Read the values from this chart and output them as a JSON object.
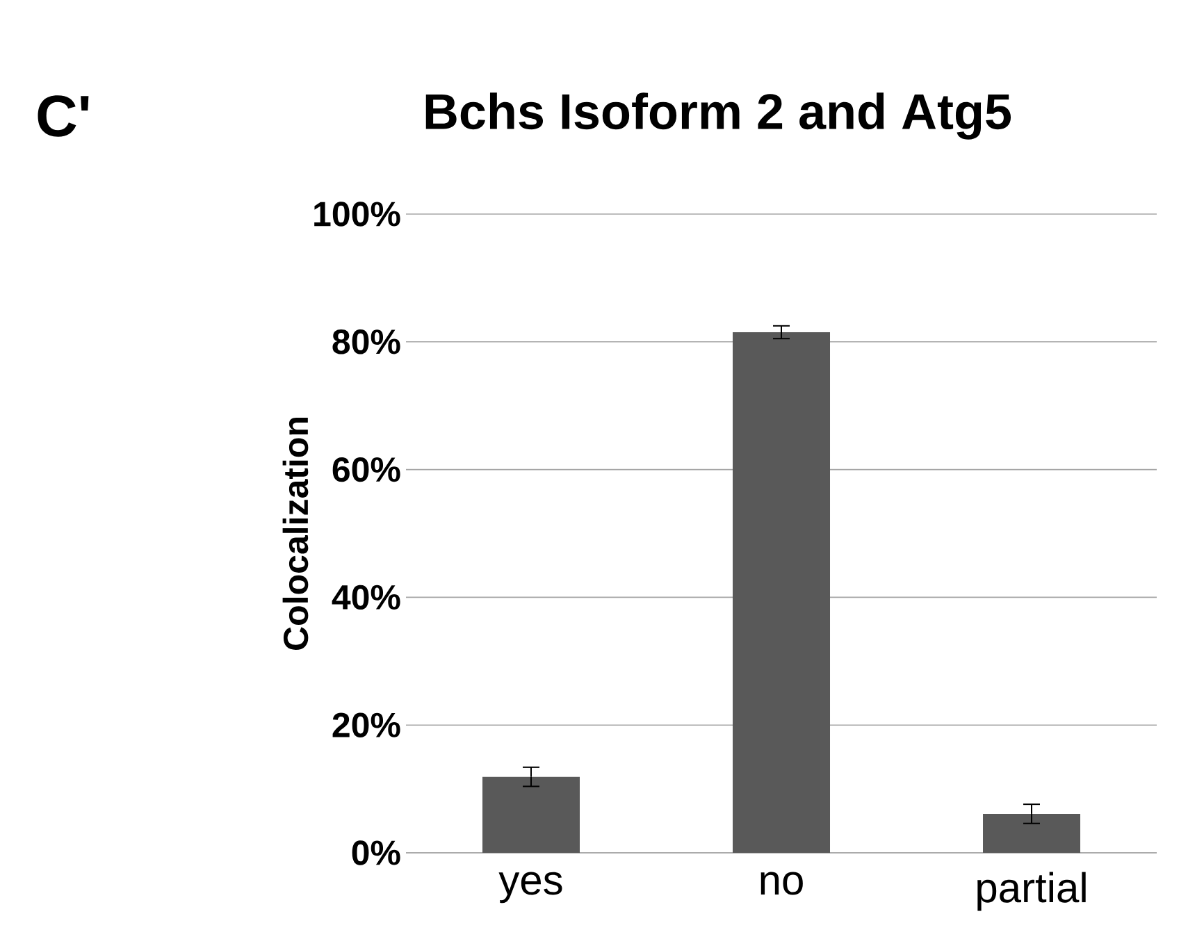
{
  "chart_data": {
    "type": "bar",
    "title": "Bchs Isoform 2 and Atg5",
    "ylabel": "Colocalization",
    "annotations": [
      "C'"
    ],
    "categories": [
      "yes",
      "no",
      "partial"
    ],
    "values": [
      11.9,
      81.5,
      6.1
    ],
    "errors": [
      1.5,
      1.0,
      1.5
    ],
    "color": "#595959",
    "ylim": [
      0,
      100
    ],
    "yticks": [
      {
        "value": 0,
        "label": "0%"
      },
      {
        "value": 20,
        "label": "20%"
      },
      {
        "value": 40,
        "label": "40%"
      },
      {
        "value": 60,
        "label": "60%"
      },
      {
        "value": 80,
        "label": "80%"
      },
      {
        "value": 100,
        "label": "100%"
      }
    ],
    "grid": "y"
  }
}
